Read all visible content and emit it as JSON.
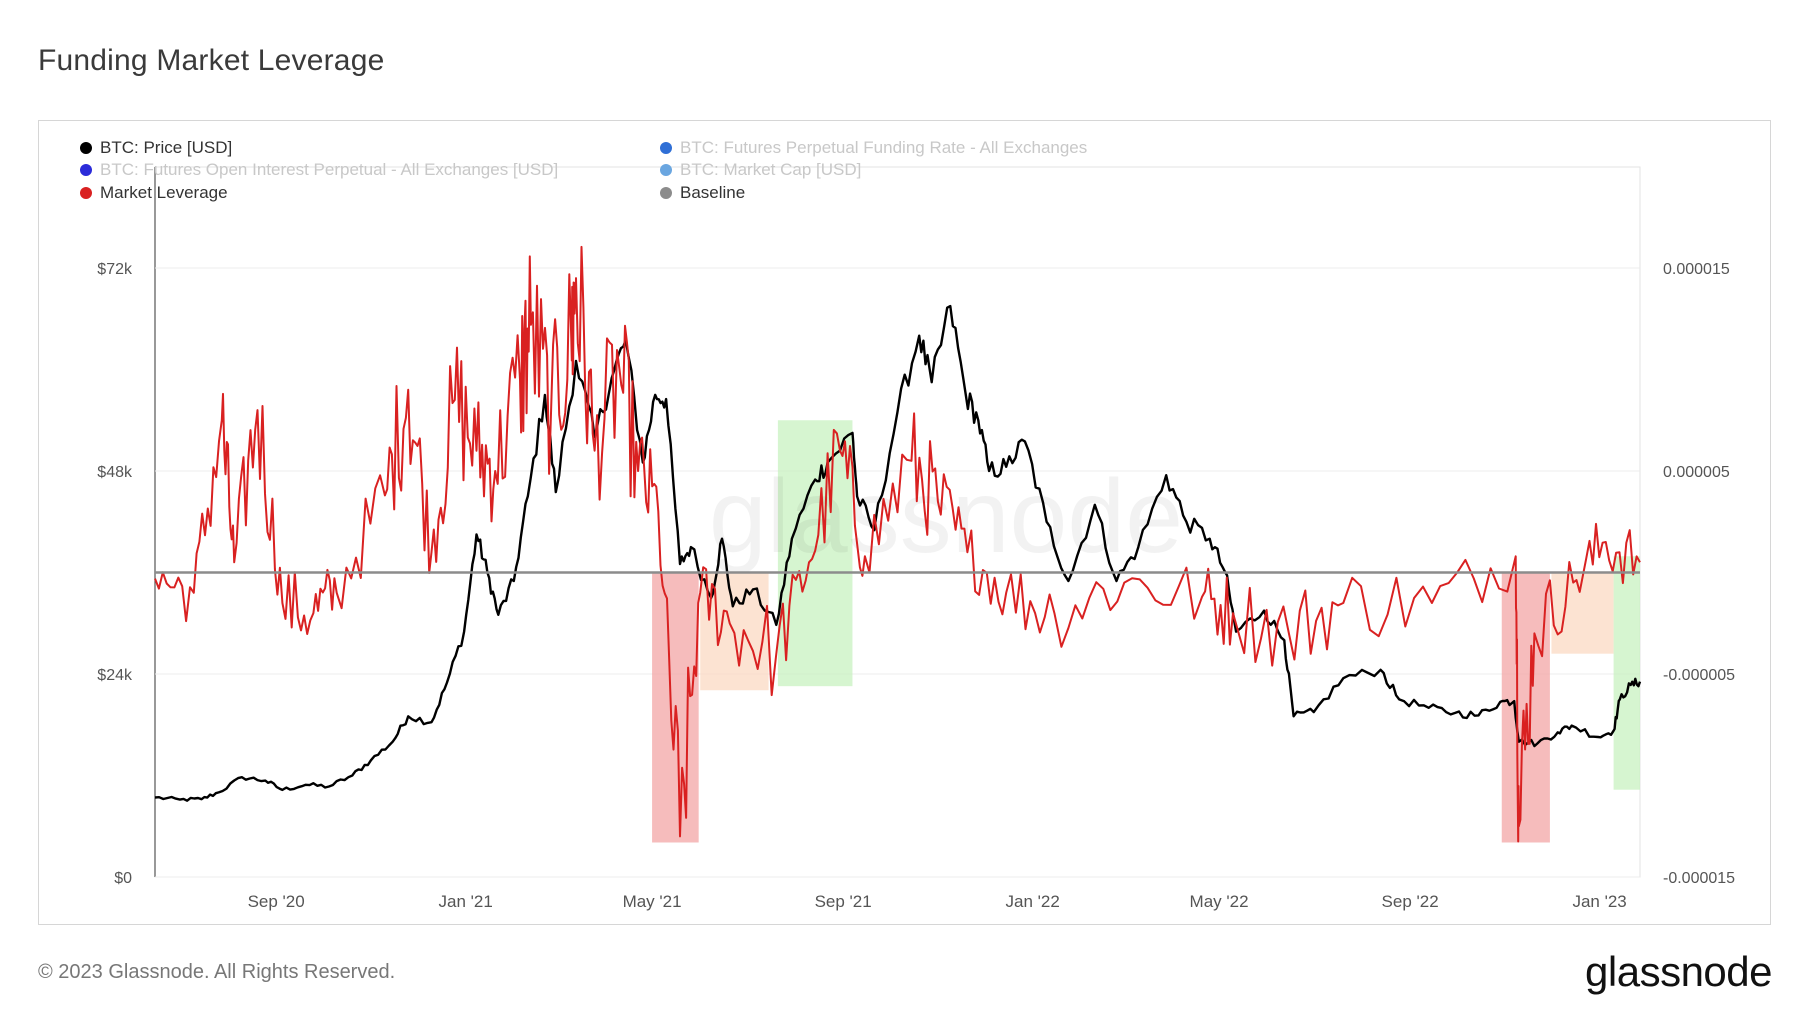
{
  "page": {
    "title": "Funding Market Leverage",
    "copyright": "© 2023 Glassnode. All Rights Reserved.",
    "logo": "glassnode",
    "watermark": "glassnode"
  },
  "legend": [
    {
      "label": "BTC: Price [USD]",
      "color": "#000000",
      "dimmed": false
    },
    {
      "label": "BTC: Futures Perpetual Funding Rate - All Exchanges",
      "color": "#2f6fd6",
      "dimmed": true
    },
    {
      "label": "BTC: Futures Open Interest Perpetual - All Exchanges [USD]",
      "color": "#2b2bd9",
      "dimmed": true
    },
    {
      "label": "BTC: Market Cap [USD]",
      "color": "#6aa6e0",
      "dimmed": true
    },
    {
      "label": "Market Leverage",
      "color": "#d92121",
      "dimmed": false
    },
    {
      "label": "Baseline",
      "color": "#8c8c8c",
      "dimmed": false
    }
  ],
  "chart_data": {
    "type": "line",
    "x_range": [
      "2020-06-15",
      "2023-01-27"
    ],
    "x_ticks": [
      {
        "label": "Sep '20",
        "date": "2020-09-01"
      },
      {
        "label": "Jan '21",
        "date": "2021-01-01"
      },
      {
        "label": "May '21",
        "date": "2021-05-01"
      },
      {
        "label": "Sep '21",
        "date": "2021-09-01"
      },
      {
        "label": "Jan '22",
        "date": "2022-01-01"
      },
      {
        "label": "May '22",
        "date": "2022-05-01"
      },
      {
        "label": "Sep '22",
        "date": "2022-09-01"
      },
      {
        "label": "Jan '23",
        "date": "2023-01-01"
      }
    ],
    "y_left": {
      "min": 0,
      "max": 72000,
      "ticks": [
        {
          "label": "$0",
          "value": 0
        },
        {
          "label": "$24k",
          "value": 24000
        },
        {
          "label": "$48k",
          "value": 48000
        },
        {
          "label": "$72k",
          "value": 72000
        }
      ]
    },
    "y_right": {
      "min": -1.5e-05,
      "max": 1.5e-05,
      "ticks": [
        {
          "label": "-0.000015",
          "value": -1.5e-05
        },
        {
          "label": "-0.000005",
          "value": -5e-06
        },
        {
          "label": "0.000005",
          "value": 5e-06
        },
        {
          "label": "0.000015",
          "value": 1.5e-05
        }
      ]
    },
    "grid": true,
    "legend_position": "top-left",
    "baseline": 0.0,
    "series": [
      {
        "name": "BTC: Price [USD]",
        "color": "#000000",
        "axis": "left",
        "points": [
          [
            "2020-06-15",
            9400
          ],
          [
            "2020-07-01",
            9150
          ],
          [
            "2020-07-15",
            9200
          ],
          [
            "2020-07-26",
            10000
          ],
          [
            "2020-08-10",
            11800
          ],
          [
            "2020-08-25",
            11400
          ],
          [
            "2020-09-05",
            10300
          ],
          [
            "2020-09-20",
            10900
          ],
          [
            "2020-10-05",
            10700
          ],
          [
            "2020-10-20",
            12000
          ],
          [
            "2020-11-01",
            13800
          ],
          [
            "2020-11-15",
            16000
          ],
          [
            "2020-11-25",
            19000
          ],
          [
            "2020-12-10",
            18300
          ],
          [
            "2020-12-20",
            23000
          ],
          [
            "2020-12-31",
            29000
          ],
          [
            "2021-01-08",
            40500
          ],
          [
            "2021-01-15",
            36000
          ],
          [
            "2021-01-22",
            31000
          ],
          [
            "2021-02-01",
            35000
          ],
          [
            "2021-02-10",
            45000
          ],
          [
            "2021-02-21",
            57000
          ],
          [
            "2021-02-28",
            45500
          ],
          [
            "2021-03-13",
            61000
          ],
          [
            "2021-03-25",
            52000
          ],
          [
            "2021-04-05",
            59000
          ],
          [
            "2021-04-14",
            63500
          ],
          [
            "2021-04-25",
            49000
          ],
          [
            "2021-05-03",
            57000
          ],
          [
            "2021-05-10",
            56500
          ],
          [
            "2021-05-19",
            37000
          ],
          [
            "2021-05-26",
            39000
          ],
          [
            "2021-06-08",
            33000
          ],
          [
            "2021-06-15",
            40000
          ],
          [
            "2021-06-22",
            32000
          ],
          [
            "2021-07-05",
            34000
          ],
          [
            "2021-07-20",
            29800
          ],
          [
            "2021-07-30",
            40000
          ],
          [
            "2021-08-14",
            47000
          ],
          [
            "2021-08-22",
            49000
          ],
          [
            "2021-09-07",
            52500
          ],
          [
            "2021-09-10",
            45000
          ],
          [
            "2021-09-21",
            41000
          ],
          [
            "2021-10-06",
            55000
          ],
          [
            "2021-10-20",
            64000
          ],
          [
            "2021-10-28",
            58500
          ],
          [
            "2021-11-09",
            67500
          ],
          [
            "2021-11-19",
            57000
          ],
          [
            "2021-11-27",
            54000
          ],
          [
            "2021-12-04",
            48000
          ],
          [
            "2021-12-15",
            48500
          ],
          [
            "2021-12-27",
            51500
          ],
          [
            "2022-01-10",
            42000
          ],
          [
            "2022-01-24",
            35000
          ],
          [
            "2022-02-10",
            44000
          ],
          [
            "2022-02-24",
            35000
          ],
          [
            "2022-03-10",
            39000
          ],
          [
            "2022-03-28",
            47500
          ],
          [
            "2022-04-10",
            42000
          ],
          [
            "2022-04-25",
            40000
          ],
          [
            "2022-05-05",
            36000
          ],
          [
            "2022-05-12",
            29000
          ],
          [
            "2022-05-30",
            31500
          ],
          [
            "2022-06-12",
            28000
          ],
          [
            "2022-06-18",
            19000
          ],
          [
            "2022-07-01",
            19500
          ],
          [
            "2022-07-20",
            23500
          ],
          [
            "2022-08-13",
            24500
          ],
          [
            "2022-08-25",
            21000
          ],
          [
            "2022-09-13",
            20000
          ],
          [
            "2022-09-30",
            19400
          ],
          [
            "2022-10-15",
            19100
          ],
          [
            "2022-10-29",
            20700
          ],
          [
            "2022-11-07",
            20800
          ],
          [
            "2022-11-10",
            16000
          ],
          [
            "2022-11-22",
            15800
          ],
          [
            "2022-12-05",
            17100
          ],
          [
            "2022-12-14",
            17900
          ],
          [
            "2022-12-31",
            16550
          ],
          [
            "2023-01-10",
            17300
          ],
          [
            "2023-01-14",
            21000
          ],
          [
            "2023-01-21",
            22700
          ],
          [
            "2023-01-27",
            23100
          ]
        ]
      },
      {
        "name": "Market Leverage",
        "color": "#d92121",
        "axis": "right",
        "points": [
          [
            "2020-06-15",
            -3e-07
          ],
          [
            "2020-07-10",
            -1e-06
          ],
          [
            "2020-07-28",
            7.5e-06
          ],
          [
            "2020-08-05",
            5e-07
          ],
          [
            "2020-08-20",
            8e-06
          ],
          [
            "2020-09-05",
            -1.5e-06
          ],
          [
            "2020-09-25",
            -2e-06
          ],
          [
            "2020-10-10",
            -1e-06
          ],
          [
            "2020-11-10",
            3.8e-06
          ],
          [
            "2020-11-25",
            9e-06
          ],
          [
            "2020-12-10",
            1e-06
          ],
          [
            "2020-12-25",
            8.5e-06
          ],
          [
            "2021-01-08",
            6e-06
          ],
          [
            "2021-01-20",
            5e-06
          ],
          [
            "2021-02-05",
            9.5e-06
          ],
          [
            "2021-02-12",
            1.22e-05
          ],
          [
            "2021-02-25",
            8e-06
          ],
          [
            "2021-03-10",
            1.15e-05
          ],
          [
            "2021-03-13",
            1.45e-05
          ],
          [
            "2021-03-25",
            6e-06
          ],
          [
            "2021-04-10",
            1e-05
          ],
          [
            "2021-04-22",
            5e-06
          ],
          [
            "2021-05-05",
            3e-06
          ],
          [
            "2021-05-19",
            -1.3e-05
          ],
          [
            "2021-06-01",
            -1e-06
          ],
          [
            "2021-06-20",
            -2.5e-06
          ],
          [
            "2021-07-20",
            -4e-06
          ],
          [
            "2021-08-10",
            5e-07
          ],
          [
            "2021-08-30",
            6e-06
          ],
          [
            "2021-09-15",
            8e-07
          ],
          [
            "2021-10-15",
            5.5e-06
          ],
          [
            "2021-11-01",
            3.5e-06
          ],
          [
            "2021-11-20",
            1e-06
          ],
          [
            "2021-12-15",
            -1e-06
          ],
          [
            "2022-01-15",
            -2e-06
          ],
          [
            "2022-03-01",
            -5e-07
          ],
          [
            "2022-04-20",
            -1.2e-06
          ],
          [
            "2022-05-10",
            -2e-06
          ],
          [
            "2022-06-15",
            -3e-06
          ],
          [
            "2022-07-20",
            -1.5e-06
          ],
          [
            "2022-09-15",
            -1.5e-06
          ],
          [
            "2022-11-08",
            8e-07
          ],
          [
            "2022-11-10",
            -1.25e-05
          ],
          [
            "2022-11-20",
            -3e-06
          ],
          [
            "2022-12-15",
            -5e-07
          ],
          [
            "2023-01-05",
            1.5e-06
          ],
          [
            "2023-01-27",
            5e-07
          ]
        ]
      },
      {
        "name": "Baseline",
        "color": "#8c8c8c",
        "axis": "right",
        "points": [
          [
            "2020-06-15",
            0.0
          ],
          [
            "2023-01-27",
            0.0
          ]
        ]
      }
    ],
    "highlight_zones": [
      {
        "start": "2021-05-01",
        "end": "2021-05-31",
        "y_top": 0.0,
        "y_bottom": -1.33e-05,
        "color": "#f3a5a5"
      },
      {
        "start": "2021-06-01",
        "end": "2021-07-15",
        "y_top": 0.0,
        "y_bottom": -5.8e-06,
        "color": "#fbd9c3"
      },
      {
        "start": "2021-07-21",
        "end": "2021-09-07",
        "y_top": 7.5e-06,
        "y_bottom": -5.6e-06,
        "color": "#c8f2c0"
      },
      {
        "start": "2022-10-30",
        "end": "2022-11-30",
        "y_top": 0.0,
        "y_bottom": -1.33e-05,
        "color": "#f3a5a5"
      },
      {
        "start": "2022-12-01",
        "end": "2023-01-10",
        "y_top": 0.0,
        "y_bottom": -4e-06,
        "color": "#fbd9c3"
      },
      {
        "start": "2023-01-10",
        "end": "2023-01-27",
        "y_top": 8e-07,
        "y_bottom": -1.07e-05,
        "color": "#c8f2c0"
      }
    ]
  }
}
